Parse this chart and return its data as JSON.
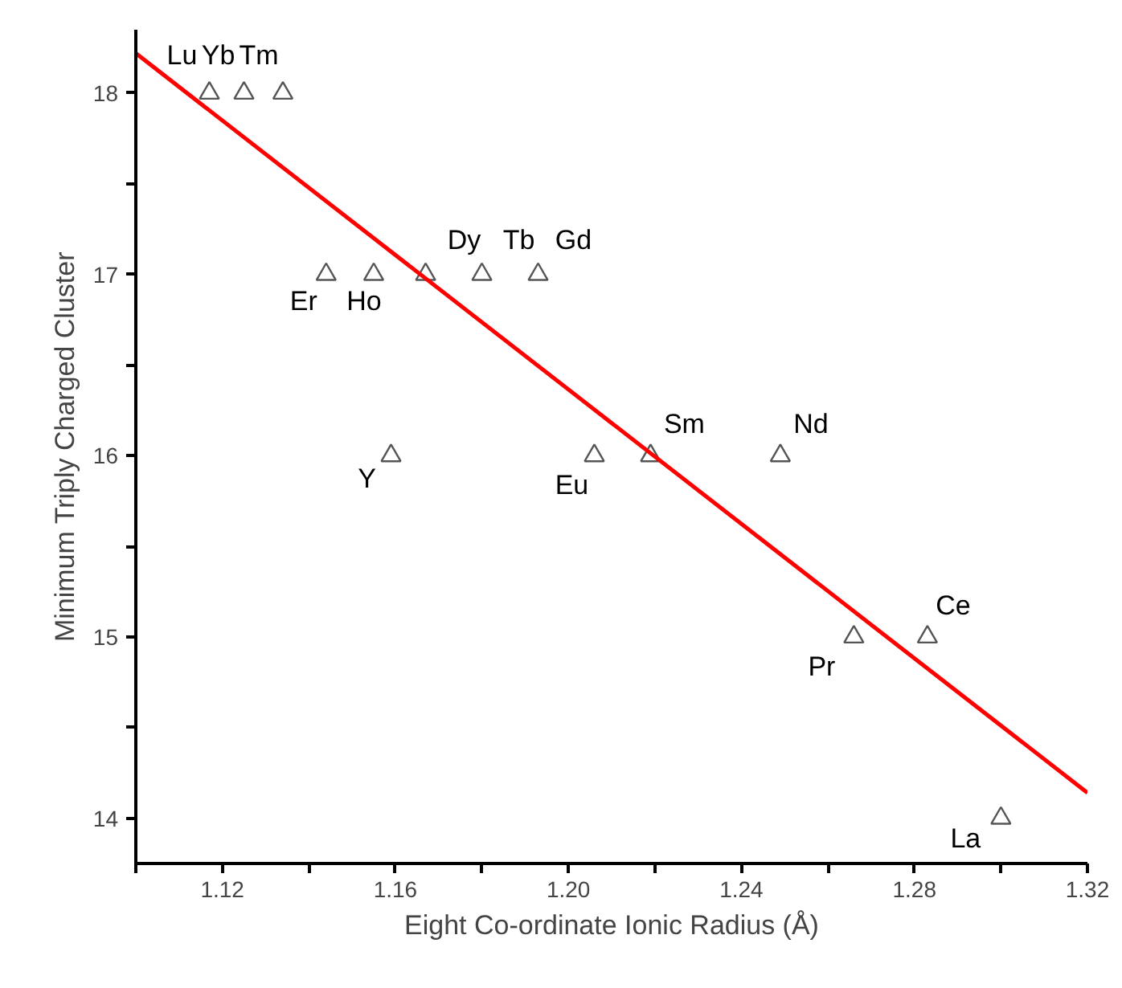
{
  "chart_data": {
    "type": "scatter",
    "xlabel": "Eight Co-ordinate Ionic Radius (Å)",
    "ylabel": "Minimum Triply Charged Cluster",
    "xlim": [
      1.1,
      1.32
    ],
    "ylim": [
      13.75,
      18.35
    ],
    "xticks": [
      {
        "value": 1.1,
        "label": null
      },
      1.12,
      {
        "value": 1.14,
        "label": null
      },
      1.16,
      {
        "value": 1.18,
        "label": null
      },
      "1.20",
      {
        "value": 1.22,
        "label": null
      },
      1.24,
      {
        "value": 1.26,
        "label": null
      },
      1.28,
      {
        "value": 1.3,
        "label": null
      },
      1.32
    ],
    "yticks": [
      14,
      {
        "value": 14.5,
        "label": null
      },
      15,
      {
        "value": 15.5,
        "label": null
      },
      16,
      {
        "value": 16.5,
        "label": null
      },
      17,
      {
        "value": 17.5,
        "label": null
      },
      18
    ],
    "grid": false,
    "legend": false,
    "series": [
      {
        "marker": "triangle",
        "color": "#555555",
        "x": [
          1.117,
          1.125,
          1.134,
          1.144,
          1.155,
          1.167,
          1.18,
          1.193,
          1.159,
          1.206,
          1.219,
          1.249,
          1.266,
          1.283,
          1.3
        ],
        "values": [
          18,
          18,
          18,
          17,
          17,
          17,
          17,
          17,
          16,
          16,
          16,
          16,
          15,
          15,
          14
        ]
      },
      {
        "type": "line",
        "color": "#ff0000",
        "line_style": "solid",
        "x": [
          1.1,
          1.32
        ],
        "values": [
          18.22,
          14.14
        ]
      }
    ],
    "annotations": [
      {
        "text": "Lu",
        "x": 1.117,
        "y": 18
      },
      {
        "text": "Yb",
        "x": 1.125,
        "y": 18
      },
      {
        "text": "Tm",
        "x": 1.134,
        "y": 18
      },
      {
        "text": "Er",
        "x": 1.144,
        "y": 17
      },
      {
        "text": "Ho",
        "x": 1.155,
        "y": 17
      },
      {
        "text": "Dy",
        "x": 1.167,
        "y": 17
      },
      {
        "text": "Tb",
        "x": 1.18,
        "y": 17
      },
      {
        "text": "Gd",
        "x": 1.193,
        "y": 17
      },
      {
        "text": "Y",
        "x": 1.159,
        "y": 16
      },
      {
        "text": "Eu",
        "x": 1.206,
        "y": 16
      },
      {
        "text": "Sm",
        "x": 1.219,
        "y": 16
      },
      {
        "text": "Nd",
        "x": 1.249,
        "y": 16
      },
      {
        "text": "Pr",
        "x": 1.266,
        "y": 15
      },
      {
        "text": "Ce",
        "x": 1.283,
        "y": 15
      },
      {
        "text": "La",
        "x": 1.3,
        "y": 14
      }
    ]
  }
}
